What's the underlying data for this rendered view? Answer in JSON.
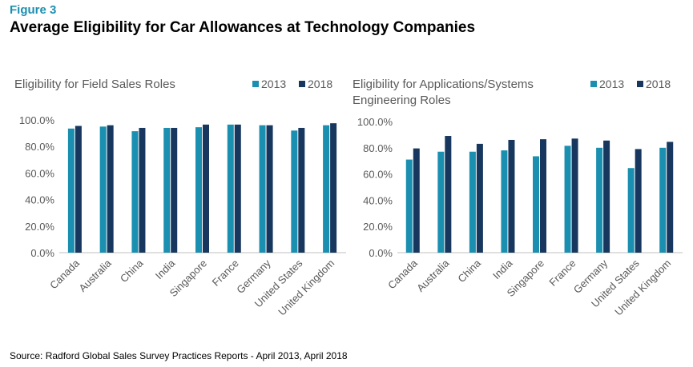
{
  "figure_label": "Figure 3",
  "title": "Average Eligibility for Car Allowances at Technology Companies",
  "source": "Source: Radford Global Sales Survey Practices Reports - April 2013, April 2018",
  "colors": {
    "2013": "#1b8fb0",
    "2018": "#17375e",
    "label": "#1b8fb0"
  },
  "chart_data": [
    {
      "type": "bar",
      "title": "Eligibility for Field Sales Roles",
      "categories": [
        "Canada",
        "Australia",
        "China",
        "India",
        "Singapore",
        "France",
        "Germany",
        "United States",
        "United Kingdom"
      ],
      "series": [
        {
          "name": "2013",
          "values": [
            93.5,
            95.0,
            91.5,
            94.0,
            94.5,
            96.5,
            96.0,
            92.0,
            96.0
          ]
        },
        {
          "name": "2018",
          "values": [
            95.5,
            96.0,
            94.0,
            94.0,
            96.5,
            96.5,
            96.0,
            94.0,
            97.5
          ]
        }
      ],
      "ylim": [
        0,
        100
      ],
      "yticks": [
        "0.0%",
        "20.0%",
        "40.0%",
        "60.0%",
        "80.0%",
        "100.0%"
      ],
      "legend_position": "top-right",
      "grid": false
    },
    {
      "type": "bar",
      "title": "Eligibility for Applications/Systems Engineering Roles",
      "categories": [
        "Canada",
        "Australia",
        "China",
        "India",
        "Singapore",
        "France",
        "Germany",
        "United States",
        "United Kingdom"
      ],
      "series": [
        {
          "name": "2013",
          "values": [
            71.0,
            77.0,
            77.0,
            78.0,
            73.5,
            81.5,
            80.0,
            64.5,
            80.0
          ]
        },
        {
          "name": "2018",
          "values": [
            79.5,
            89.0,
            83.0,
            86.0,
            86.5,
            87.0,
            85.5,
            79.0,
            84.5
          ]
        }
      ],
      "ylim": [
        0,
        100
      ],
      "yticks": [
        "0.0%",
        "20.0%",
        "40.0%",
        "60.0%",
        "80.0%",
        "100.0%"
      ],
      "legend_position": "top-right",
      "grid": false
    }
  ]
}
